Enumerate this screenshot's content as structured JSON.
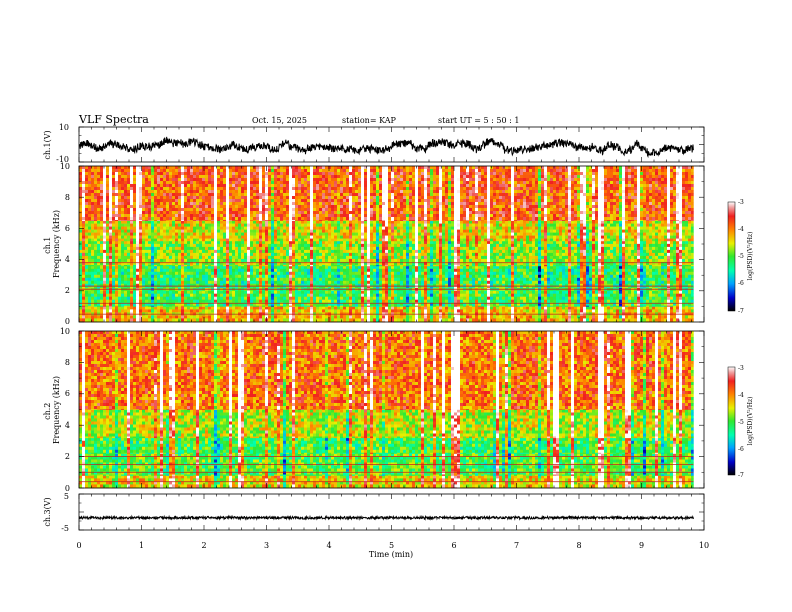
{
  "header": {
    "title": "VLF Spectra",
    "date": "Oct. 15, 2025",
    "station": "station= KAP",
    "start": "start  UT =   5 : 50 : 1"
  },
  "chart_data": [
    {
      "type": "line",
      "name": "ch1-waveform",
      "ylabel": "ch.1(V)",
      "ylim": [
        -10,
        10
      ],
      "ytick_labels": [
        "10",
        "-10"
      ],
      "x_range": [
        0,
        9.83
      ],
      "typical_range": [
        -5,
        3
      ],
      "color": "#000000"
    },
    {
      "type": "heatmap",
      "name": "ch1-spectrogram",
      "ylabel": "ch.1\nFrequency (kHz)",
      "ylim": [
        0,
        10
      ],
      "ytick_labels": [
        "0",
        "2",
        "4",
        "6",
        "8",
        "10"
      ],
      "x_range": [
        0,
        9.83
      ],
      "bands": [
        {
          "from": 0,
          "to": 1,
          "level": -4.3
        },
        {
          "from": 1,
          "to": 2.2,
          "level": -5.1
        },
        {
          "from": 2.2,
          "to": 3.6,
          "level": -5.2
        },
        {
          "from": 3.6,
          "to": 5.2,
          "level": -4.8
        },
        {
          "from": 5.2,
          "to": 6.5,
          "level": -4.5
        },
        {
          "from": 6.5,
          "to": 10,
          "level": -3.8
        }
      ],
      "lines_khz": [
        0.5,
        1.2,
        2.1,
        2.3,
        3.8
      ],
      "colorbar": {
        "label": "log(PSD)(V²/Hz)",
        "range": [
          -7,
          -3
        ],
        "tick_labels": [
          "-3",
          "-4",
          "-5",
          "-6",
          "-7"
        ]
      }
    },
    {
      "type": "heatmap",
      "name": "ch2-spectrogram",
      "ylabel": "ch.2\nFrequency (kHz)",
      "ylim": [
        0,
        10
      ],
      "ytick_labels": [
        "0",
        "2",
        "4",
        "6",
        "8",
        "10"
      ],
      "x_range": [
        0,
        9.83
      ],
      "bands": [
        {
          "from": 0,
          "to": 0.8,
          "level": -4.4
        },
        {
          "from": 0.8,
          "to": 2.2,
          "level": -5.0
        },
        {
          "from": 2.2,
          "to": 3.2,
          "level": -5.1
        },
        {
          "from": 3.2,
          "to": 5.0,
          "level": -4.6
        },
        {
          "from": 5.0,
          "to": 10,
          "level": -3.9
        }
      ],
      "lines_khz": [
        0.4,
        1.0,
        1.5,
        2.0
      ],
      "colorbar": {
        "label": "log(PSD)(V²/Hz)",
        "range": [
          -7,
          -3
        ],
        "tick_labels": [
          "-3",
          "-4",
          "-5",
          "-6",
          "-7"
        ]
      }
    },
    {
      "type": "line",
      "name": "ch3-waveform",
      "ylabel": "ch.3(V)",
      "ylim": [
        -5,
        5
      ],
      "ytick_labels": [
        "5",
        "-5"
      ],
      "x_range": [
        0,
        9.83
      ],
      "typical_range": [
        -2.0,
        -1.2
      ],
      "color": "#000000"
    }
  ],
  "xaxis": {
    "label": "Time (min)",
    "range": [
      0,
      10
    ],
    "tick_labels": [
      "0",
      "1",
      "2",
      "3",
      "4",
      "5",
      "6",
      "7",
      "8",
      "9",
      "10"
    ]
  }
}
